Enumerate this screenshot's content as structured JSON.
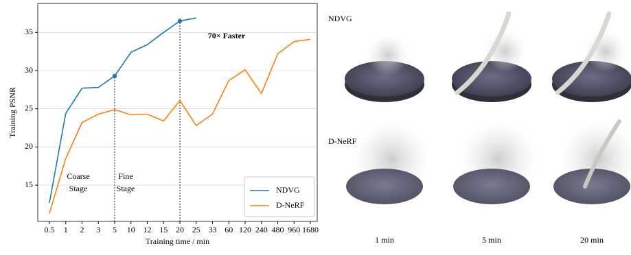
{
  "chart_data": {
    "type": "line",
    "xlabel": "Training time / min",
    "ylabel": "Training PSNR",
    "categories": [
      "0.5",
      "1",
      "2",
      "3",
      "5",
      "10",
      "12",
      "15",
      "20",
      "25",
      "33",
      "60",
      "120",
      "240",
      "480",
      "960",
      "1680"
    ],
    "series": [
      {
        "name": "NDVG",
        "color": "#1f77b4",
        "values": [
          12.7,
          24.4,
          27.7,
          27.8,
          29.3,
          32.4,
          33.4,
          35.0,
          36.5,
          36.9,
          null,
          null,
          null,
          null,
          null,
          null,
          null
        ]
      },
      {
        "name": "D-NeRF",
        "color": "#ff7f0e",
        "values": [
          11.3,
          18.5,
          23.2,
          24.3,
          24.9,
          24.2,
          24.3,
          23.4,
          26.1,
          22.8,
          24.3,
          28.7,
          30.1,
          27.0,
          32.2,
          33.8,
          34.1
        ]
      }
    ],
    "ylim": [
      10.25,
      38.8
    ],
    "yticks": [
      15,
      20,
      25,
      30,
      35
    ],
    "grid": true,
    "legend": "lower right",
    "stage_lines": [
      "5",
      "20"
    ],
    "annotations": [
      {
        "text": "70× Faster"
      },
      {
        "text": "Coarse\nStage"
      },
      {
        "text": "Fine\nStage"
      }
    ]
  },
  "panels": {
    "rows": [
      "NDVG",
      "D-NeRF"
    ],
    "columns": [
      "1 min",
      "5 min",
      "20 min"
    ]
  }
}
